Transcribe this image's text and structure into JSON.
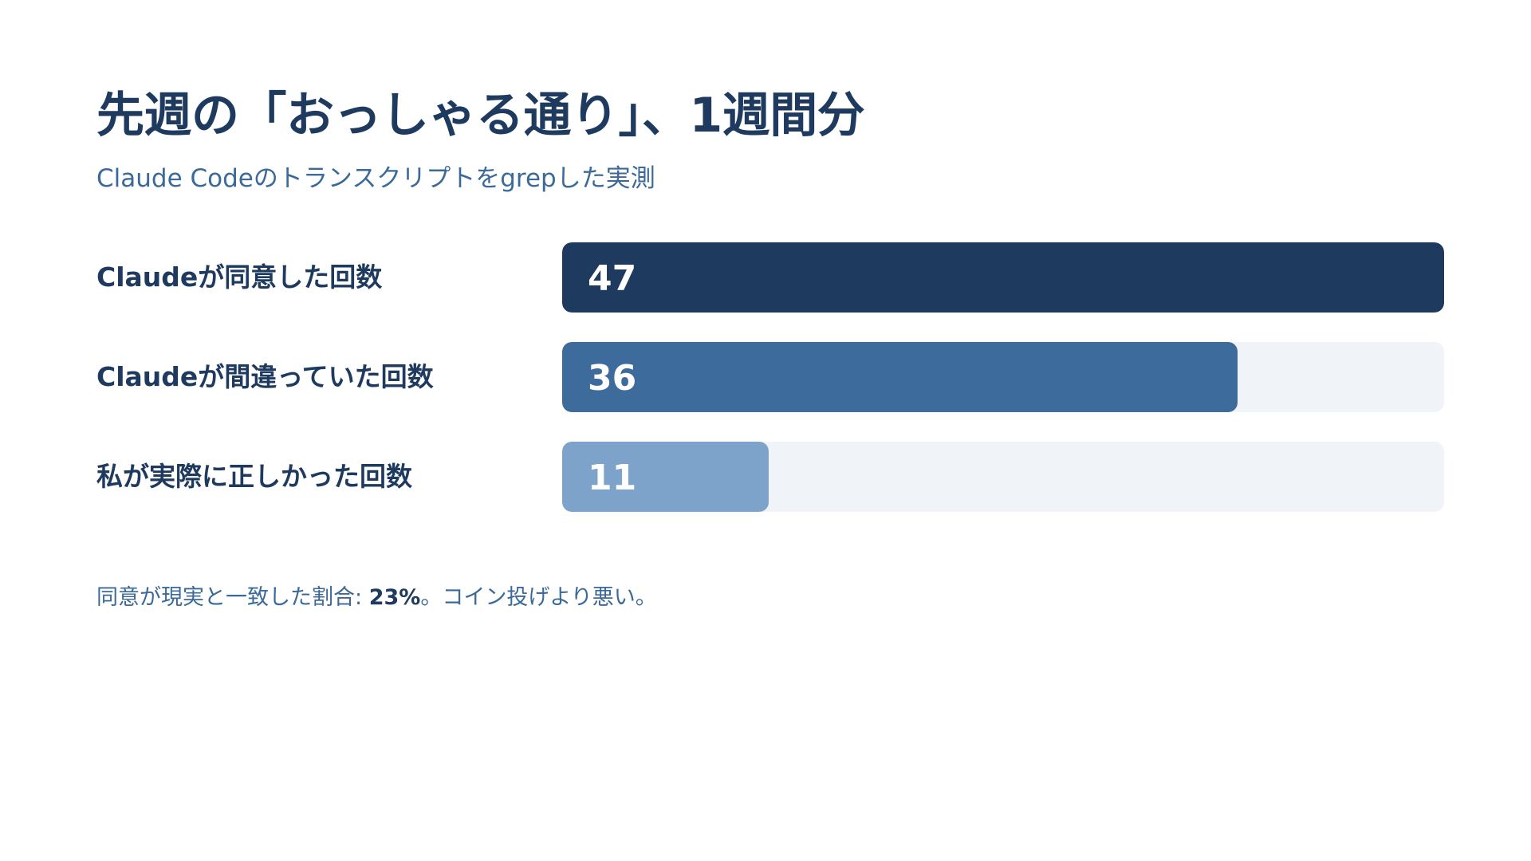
{
  "title": "先週の「おっしゃる通り」、1週間分",
  "subtitle": "Claude Codeのトランスクリプトをgrepした実測",
  "colors": {
    "title": "#1f3a5f",
    "subtitle": "#3b6a9a",
    "track": "#f0f4f9"
  },
  "chart_data": {
    "type": "bar",
    "orientation": "horizontal",
    "categories": [
      "Claudeが同意した回数",
      "Claudeが間違っていた回数",
      "私が実際に正しかった回数"
    ],
    "values": [
      47,
      36,
      11
    ],
    "xlim": [
      0,
      47
    ],
    "bar_colors": [
      "#1f3a5f",
      "#3d6b9c",
      "#7ea3cb"
    ],
    "value_labels": true,
    "grid": false
  },
  "footnote": {
    "prefix": "同意が現実と一致した割合: ",
    "highlight": "23%",
    "suffix": "。コイン投げより悪い。"
  }
}
